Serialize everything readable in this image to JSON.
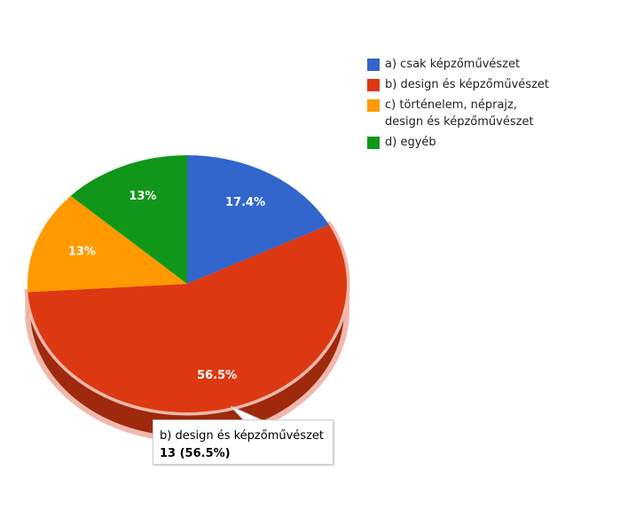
{
  "chart_data": {
    "type": "pie",
    "categories": [
      "a) csak képzőművészet",
      "b) design és képzőművészet",
      "c) történelem, néprajz, design és képzőművészet",
      "d) egyéb"
    ],
    "values": [
      17.4,
      56.5,
      13,
      13
    ],
    "value_labels": [
      "17.4%",
      "56.5%",
      "13%",
      "13%"
    ],
    "colors": [
      "#3366cc",
      "#dc3912",
      "#ff9900",
      "#109618"
    ],
    "legend": "right",
    "tooltip": {
      "text": "13 (56.5%)"
    }
  }
}
